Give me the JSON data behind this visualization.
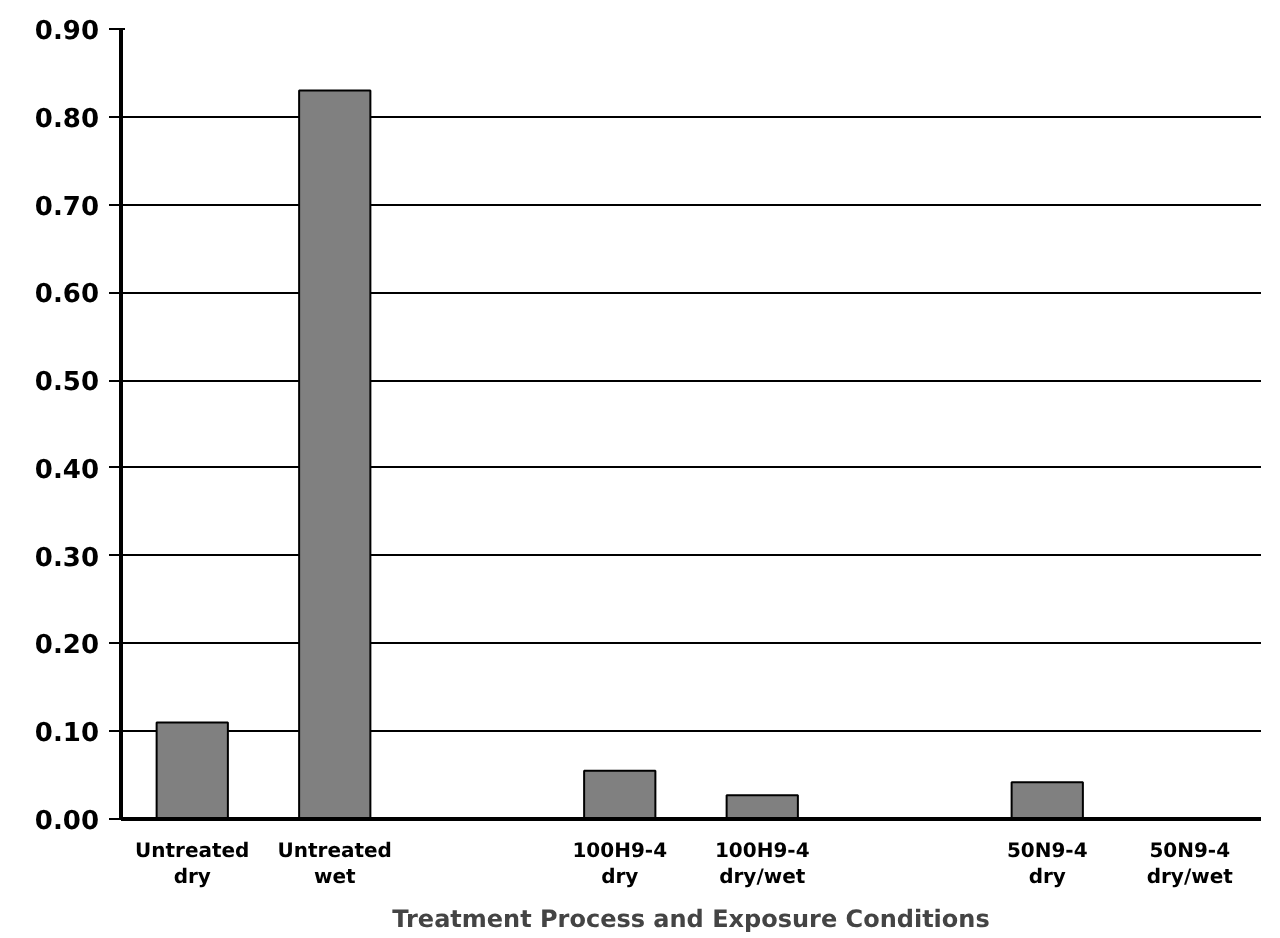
{
  "chart_data": {
    "type": "bar",
    "xlabel": "Treatment Process and Exposure Conditions",
    "categories": [
      "Untreated\ndry",
      "Untreated\nwet",
      null,
      "100H9-4\ndry",
      "100H9-4\ndry/wet",
      null,
      "50N9-4\ndry",
      "50N9-4\ndry/wet"
    ],
    "values": [
      0.11,
      0.83,
      null,
      0.055,
      0.027,
      null,
      0.042,
      null
    ],
    "color": "#808080",
    "ylim": [
      0,
      0.9
    ],
    "yticks": [
      {
        "value": 0,
        "label": "0.00"
      },
      {
        "value": 0.1,
        "label": "0.10"
      },
      {
        "value": 0.2,
        "label": "0.20"
      },
      {
        "value": 0.3,
        "label": "0.30"
      },
      {
        "value": 0.4,
        "label": "0.40"
      },
      {
        "value": 0.5,
        "label": "0.50"
      },
      {
        "value": 0.6,
        "label": "0.60"
      },
      {
        "value": 0.7,
        "label": "0.70"
      },
      {
        "value": 0.8,
        "label": "0.80"
      },
      {
        "value": 0.9,
        "label": "0.90"
      }
    ],
    "grid": "y"
  }
}
